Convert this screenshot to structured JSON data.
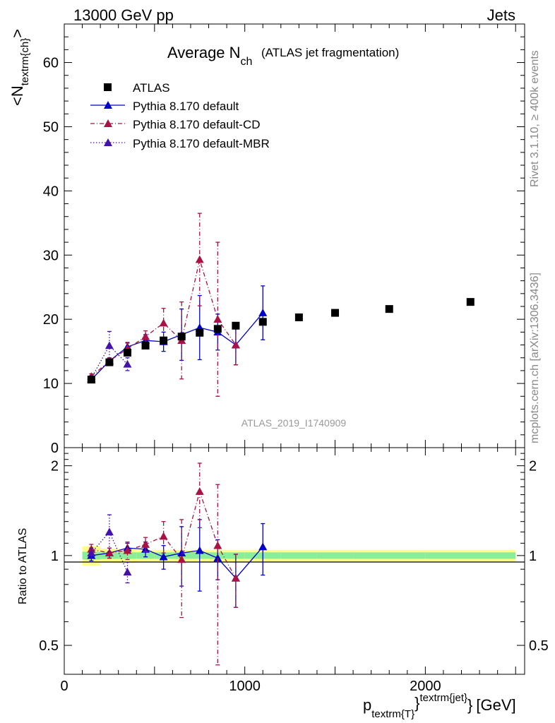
{
  "header": {
    "left_label": "13000 GeV pp",
    "right_label": "Jets"
  },
  "side_text": {
    "rivet": "Rivet 3.1.10, ≥ 400k events",
    "mcplots": "mcplots.cern.ch [arXiv:1306.3436]"
  },
  "watermark": "ATLAS_2019_I1740909",
  "colors": {
    "atlas": "#000000",
    "default": "#0000cc",
    "default_cd": "#aa1144",
    "default_mbr": "#4411aa",
    "band_inner": "#88ee99",
    "band_outer": "#ffff88"
  },
  "chart_data": [
    {
      "type": "scatter",
      "title": "Average N",
      "title_sub": "ch",
      "title_suffix": "(ATLAS jet fragmentation)",
      "ylabel": "<N",
      "ylabel_sub": "textrm{ch}",
      "ylabel_end": ">",
      "xlim": [
        0,
        2550
      ],
      "ylim": [
        0,
        66
      ],
      "yticks": [
        "0",
        "10",
        "20",
        "30",
        "40",
        "50",
        "60"
      ],
      "legend_position": "top-left",
      "grid": false,
      "series": [
        {
          "name": "ATLAS",
          "marker": "square",
          "x": [
            150,
            250,
            350,
            450,
            550,
            650,
            750,
            850,
            950,
            1100,
            1300,
            1500,
            1800,
            2250
          ],
          "y": [
            10.6,
            13.3,
            14.8,
            15.9,
            16.7,
            17.3,
            17.9,
            18.5,
            19.0,
            19.6,
            20.3,
            21.0,
            21.6,
            22.7
          ]
        },
        {
          "name": "Pythia 8.170 default",
          "marker": "triangle",
          "line": "solid",
          "x": [
            150,
            250,
            350,
            450,
            550,
            650,
            750,
            850,
            950,
            1100
          ],
          "y": [
            10.6,
            13.5,
            15.7,
            16.7,
            16.5,
            17.6,
            18.7,
            18.0,
            16.0,
            21.0
          ],
          "err": [
            0.4,
            0.5,
            0.6,
            0.9,
            1.5,
            4.0,
            5.0,
            2.8,
            3.1,
            4.2
          ]
        },
        {
          "name": "Pythia 8.170 default-CD",
          "marker": "triangle",
          "line": "dashdot",
          "x": [
            150,
            250,
            350,
            450,
            550,
            650,
            750,
            850,
            950
          ],
          "y": [
            11.1,
            13.5,
            15.4,
            17.3,
            19.4,
            16.7,
            29.3,
            20.0,
            16.0
          ],
          "err": [
            0.4,
            0.5,
            1.0,
            0.9,
            2.3,
            6.0,
            7.2,
            12.0,
            3.1
          ]
        },
        {
          "name": "Pythia 8.170 default-MBR",
          "marker": "triangle",
          "line": "dotted",
          "x": [
            150,
            250,
            350
          ],
          "y": [
            10.8,
            15.9,
            13.0
          ],
          "err": [
            0.4,
            2.2,
            1.0
          ]
        }
      ]
    },
    {
      "type": "scatter",
      "ylabel": "Ratio to ATLAS",
      "xlabel": "p",
      "xlabel_sub": "textrm{T}",
      "xlabel_sup": "textrm{jet}",
      "xlabel_unit": "[GeV]",
      "xlim": [
        0,
        2550
      ],
      "ylim": [
        0.4,
        2.3
      ],
      "log_y": true,
      "yticks": [
        "0.5",
        "1",
        "2"
      ],
      "xticks": [
        "0",
        "1000",
        "2000"
      ],
      "series": [
        {
          "name": "Pythia 8.170 default",
          "x": [
            150,
            250,
            350,
            450,
            550,
            650,
            750,
            850,
            950,
            1100
          ],
          "y": [
            1.0,
            1.02,
            1.06,
            1.05,
            0.99,
            1.02,
            1.04,
            0.98,
            0.84,
            1.07
          ],
          "err": [
            0.04,
            0.04,
            0.04,
            0.06,
            0.09,
            0.23,
            0.28,
            0.15,
            0.17,
            0.21
          ]
        },
        {
          "name": "Pythia 8.170 default-CD",
          "x": [
            150,
            250,
            350,
            450,
            550,
            650,
            750,
            850,
            950
          ],
          "y": [
            1.05,
            1.02,
            1.04,
            1.09,
            1.16,
            0.97,
            1.64,
            1.08,
            0.84
          ],
          "err": [
            0.04,
            0.04,
            0.07,
            0.06,
            0.14,
            0.35,
            0.4,
            0.65,
            0.17
          ]
        },
        {
          "name": "Pythia 8.170 default-MBR",
          "x": [
            150,
            250,
            350
          ],
          "y": [
            1.02,
            1.2,
            0.88
          ],
          "err": [
            0.04,
            0.17,
            0.07
          ]
        }
      ]
    }
  ]
}
